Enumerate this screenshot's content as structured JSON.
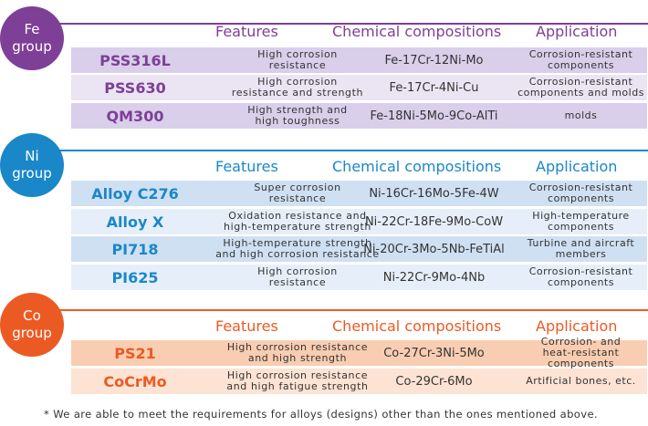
{
  "colors": {
    "fe": "#7e3f97",
    "fe_row_dark": "#d9cfea",
    "fe_row_light": "#ebe4f3",
    "ni": "#1a87c9",
    "ni_row_dark": "#cfe0f2",
    "ni_row_light": "#e6eff9",
    "co": "#ec5a24",
    "co_row_dark": "#f9cdb1",
    "co_row_light": "#fde3d3"
  },
  "headers": {
    "features": "Features",
    "chemical": "Chemical compositions",
    "application": "Application"
  },
  "groups": [
    {
      "circle": [
        "Fe",
        "group"
      ],
      "rows": [
        {
          "name": "PSS316L",
          "features": [
            "High corrosion",
            "resistance"
          ],
          "chemical": "Fe-17Cr-12Ni-Mo",
          "application": [
            "Corrosion-resistant",
            "components"
          ]
        },
        {
          "name": "PSS630",
          "features": [
            "High corrosion",
            "resistance and strength"
          ],
          "chemical": "Fe-17Cr-4Ni-Cu",
          "application": [
            "Corrosion-resistant",
            "components and molds"
          ]
        },
        {
          "name": "QM300",
          "features": [
            "High strength and",
            "high toughness"
          ],
          "chemical": "Fe-18Ni-5Mo-9Co-AlTi",
          "application": [
            "molds"
          ]
        }
      ]
    },
    {
      "circle": [
        "Ni",
        "group"
      ],
      "rows": [
        {
          "name": "Alloy C276",
          "features": [
            "Super corrosion",
            "resistance"
          ],
          "chemical": "Ni-16Cr-16Mo-5Fe-4W",
          "application": [
            "Corrosion-resistant",
            "components"
          ]
        },
        {
          "name": "Alloy X",
          "features": [
            "Oxidation resistance and",
            "high-temperature strength"
          ],
          "chemical": "Ni-22Cr-18Fe-9Mo-CoW",
          "application": [
            "High-temperature",
            "components"
          ]
        },
        {
          "name": "PI718",
          "features": [
            "High-temperature strength",
            "and high corrosion resistance"
          ],
          "chemical": "Ni-20Cr-3Mo-5Nb-FeTiAl",
          "application": [
            "Turbine and aircraft",
            "members"
          ]
        },
        {
          "name": "PI625",
          "features": [
            "High corrosion",
            "resistance"
          ],
          "chemical": "Ni-22Cr-9Mo-4Nb",
          "application": [
            "Corrosion-resistant",
            "components"
          ]
        }
      ]
    },
    {
      "circle": [
        "Co",
        "group"
      ],
      "rows": [
        {
          "name": "PS21",
          "features": [
            "High corrosion resistance",
            "and high strength"
          ],
          "chemical": "Co-27Cr-3Ni-5Mo",
          "application": [
            "Corrosion- and",
            "heat-resistant components"
          ]
        },
        {
          "name": "CoCrMo",
          "features": [
            "High corrosion resistance",
            "and high fatigue strength"
          ],
          "chemical": "Co-29Cr-6Mo",
          "application": [
            "Artificial bones, etc."
          ]
        }
      ]
    }
  ],
  "footnote": "* We are able to meet the requirements for alloys (designs) other than the ones mentioned above."
}
